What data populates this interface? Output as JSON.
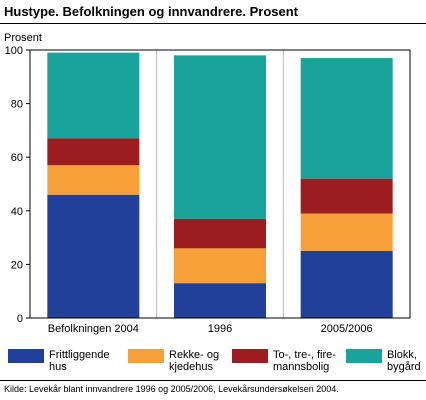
{
  "title": "Hustype. Befolkningen og innvandrere. Prosent",
  "source": "Kilde: Levekår blant innvandrere 1996 og 2005/2006, Levekårsundersøkelsen 2004.",
  "chart_data": {
    "type": "bar",
    "stacked": true,
    "ylabel": "Prosent",
    "ylim": [
      0,
      100
    ],
    "yticks": [
      0,
      20,
      40,
      60,
      80,
      100
    ],
    "grid": "vertical separators",
    "legend_position": "bottom",
    "categories": [
      "Befolkningen 2004",
      "1996",
      "2005/2006"
    ],
    "series": [
      {
        "name": "Frittliggende\nhus",
        "color": "#21409a",
        "values": [
          46,
          13,
          25
        ]
      },
      {
        "name": "Rekke- og\nkjedehus",
        "color": "#f7a039",
        "values": [
          11,
          13,
          14
        ]
      },
      {
        "name": "To-, tre-, fire-\nmannsbolig",
        "color": "#9c1c20",
        "values": [
          10,
          11,
          13
        ]
      },
      {
        "name": "Blokk,\nbygård",
        "color": "#1aa39a",
        "values": [
          32,
          61,
          45
        ]
      }
    ]
  }
}
